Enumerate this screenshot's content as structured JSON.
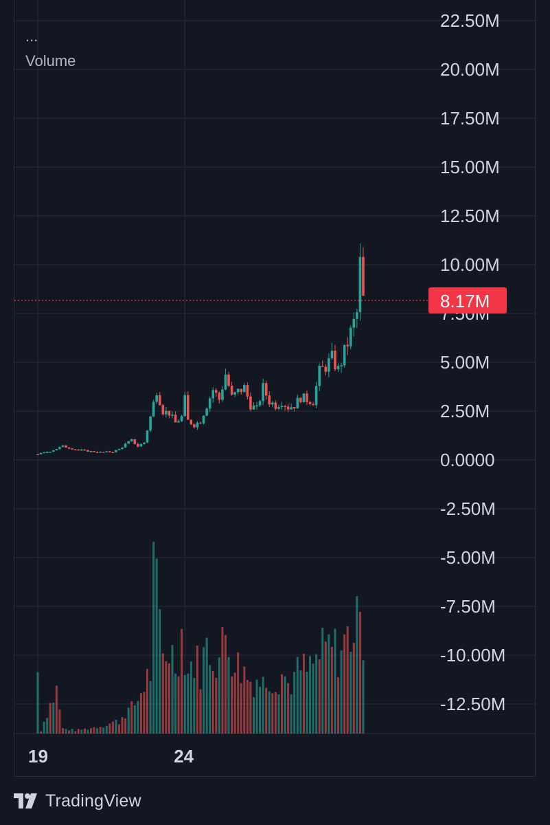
{
  "legend": {
    "menu": "...",
    "label": "Volume"
  },
  "brand": {
    "name": "TradingView",
    "logo_icon": "tradingview-logo-icon"
  },
  "colors": {
    "background": "#131722",
    "grid": "#2a2e39",
    "up": "#26a69a",
    "down": "#ef5350",
    "price_tag": "#f23645",
    "text": "#d1d4dc"
  },
  "chart_data": {
    "type": "candlestick",
    "xlabel": "",
    "ylabel": "",
    "x_ticks": [
      "19",
      "24"
    ],
    "y_ticks": [
      "22.50M",
      "20.00M",
      "17.50M",
      "15.00M",
      "12.50M",
      "10.00M",
      "7.50M",
      "5.00M",
      "2.50M",
      "0.0000",
      "-2.50M",
      "-5.00M",
      "-7.50M",
      "-10.00M",
      "-12.50M"
    ],
    "y_tick_values": [
      22500000,
      20000000,
      17500000,
      15000000,
      12500000,
      10000000,
      7500000,
      5000000,
      2500000,
      0,
      -2500000,
      -5000000,
      -7500000,
      -10000000,
      -12500000
    ],
    "ylim": [
      -14000000,
      23000000
    ],
    "grid": true,
    "current_value": 8170000,
    "current_value_label": "8.17M",
    "price_path": [
      [
        0,
        0.3
      ],
      [
        4,
        0.45
      ],
      [
        8,
        0.7
      ],
      [
        12,
        0.55
      ],
      [
        16,
        0.45
      ],
      [
        20,
        0.4
      ],
      [
        24,
        0.42
      ],
      [
        26,
        0.55
      ],
      [
        28,
        0.8
      ],
      [
        30,
        1.0
      ],
      [
        32,
        0.7
      ],
      [
        34,
        0.9
      ],
      [
        36,
        2.2
      ],
      [
        38,
        3.6
      ],
      [
        40,
        2.5
      ],
      [
        42,
        2.4
      ],
      [
        44,
        1.9
      ],
      [
        46,
        2.2
      ],
      [
        47,
        3.1
      ],
      [
        48,
        2.0
      ],
      [
        50,
        1.8
      ],
      [
        52,
        2.0
      ],
      [
        54,
        2.8
      ],
      [
        56,
        3.6
      ],
      [
        58,
        3.1
      ],
      [
        60,
        4.4
      ],
      [
        62,
        3.2
      ],
      [
        64,
        3.5
      ],
      [
        66,
        3.7
      ],
      [
        68,
        2.8
      ],
      [
        70,
        2.6
      ],
      [
        72,
        3.7
      ],
      [
        74,
        3.0
      ],
      [
        76,
        2.8
      ],
      [
        78,
        3.0
      ],
      [
        80,
        2.7
      ],
      [
        82,
        2.8
      ],
      [
        84,
        3.2
      ],
      [
        86,
        3.1
      ],
      [
        88,
        3.0
      ],
      [
        90,
        4.5
      ],
      [
        92,
        4.8
      ],
      [
        94,
        5.2
      ],
      [
        96,
        4.6
      ],
      [
        98,
        5.5
      ],
      [
        100,
        6.5
      ],
      [
        102,
        7.5
      ],
      [
        103,
        10.0
      ],
      [
        104,
        8.17
      ]
    ],
    "volume_path": [
      [
        0,
        10.0
      ],
      [
        1,
        0.5
      ],
      [
        3,
        3.5
      ],
      [
        6,
        7.0
      ],
      [
        8,
        0.8
      ],
      [
        12,
        0.5
      ],
      [
        16,
        0.8
      ],
      [
        20,
        1.2
      ],
      [
        24,
        1.8
      ],
      [
        26,
        2.0
      ],
      [
        28,
        3.5
      ],
      [
        30,
        4.0
      ],
      [
        32,
        5.5
      ],
      [
        34,
        8.0
      ],
      [
        36,
        10.0
      ],
      [
        37,
        25.0
      ],
      [
        38,
        22.0
      ],
      [
        40,
        12.5
      ],
      [
        42,
        14.0
      ],
      [
        44,
        11.5
      ],
      [
        46,
        16.0
      ],
      [
        48,
        10.0
      ],
      [
        50,
        12.0
      ],
      [
        52,
        10.5
      ],
      [
        54,
        14.0
      ],
      [
        56,
        13.0
      ],
      [
        58,
        12.0
      ],
      [
        60,
        16.0
      ],
      [
        62,
        13.0
      ],
      [
        64,
        11.0
      ],
      [
        66,
        10.0
      ],
      [
        68,
        8.5
      ],
      [
        70,
        9.0
      ],
      [
        72,
        8.0
      ],
      [
        74,
        9.5
      ],
      [
        76,
        8.5
      ],
      [
        78,
        10.0
      ],
      [
        80,
        8.0
      ],
      [
        82,
        9.0
      ],
      [
        84,
        10.5
      ],
      [
        86,
        10.0
      ],
      [
        88,
        11.0
      ],
      [
        90,
        12.5
      ],
      [
        92,
        13.5
      ],
      [
        94,
        14.0
      ],
      [
        96,
        13.0
      ],
      [
        98,
        14.5
      ],
      [
        100,
        16.5
      ],
      [
        102,
        17.0
      ],
      [
        103,
        28.5
      ],
      [
        104,
        15.0
      ]
    ]
  }
}
